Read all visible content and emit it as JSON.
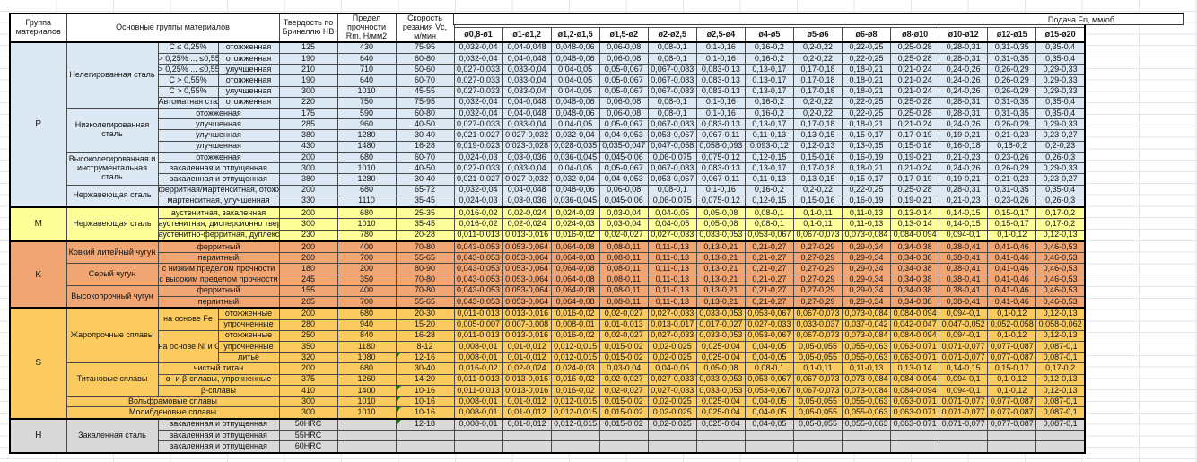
{
  "header": {
    "col_group": "Группа материалов",
    "col_main_groups": "Основные группы материалов",
    "col_hardness": "Твердость по Бринеллю HB",
    "col_strength": "Предел прочности Rm, Н/мм2",
    "col_speed": "Скорость резания Vc, м/мин",
    "feed_title": "Подача Fn, мм/об",
    "feed_columns": [
      "ø0,8-ø1",
      "ø1-ø1,2",
      "ø1,2-ø1,5",
      "ø1,5-ø2",
      "ø2-ø2,5",
      "ø2,5-ø4",
      "ø4-ø5",
      "ø5-ø6",
      "ø6-ø8",
      "ø8-ø10",
      "ø10-ø12",
      "ø12-ø15",
      "ø15-ø20"
    ]
  },
  "comment_flag_color": "#117711",
  "feed_patterns": {
    "A": [
      "0,032-0,04",
      "0,04-0,048",
      "0,048-0,06",
      "0,06-0,08",
      "0,08-0,1",
      "0,1-0,16",
      "0,16-0,2",
      "0,2-0,22",
      "0,22-0,25",
      "0,25-0,28",
      "0,28-0,31",
      "0,31-0,35",
      "0,35-0,4"
    ],
    "B": [
      "0,027-0,033",
      "0,033-0,04",
      "0,04-0,05",
      "0,05-0,067",
      "0,067-0,083",
      "0,083-0,13",
      "0,13-0,17",
      "0,17-0,18",
      "0,18-0,21",
      "0,21-0,24",
      "0,24-0,26",
      "0,26-0,29",
      "0,29-0,33"
    ],
    "C": [
      "0,021-0,027",
      "0,027-0,032",
      "0,032-0,04",
      "0,04-0,053",
      "0,053-0,067",
      "0,067-0,11",
      "0,11-0,13",
      "0,13-0,15",
      "0,15-0,17",
      "0,17-0,19",
      "0,19-0,21",
      "0,21-0,23",
      "0,23-0,27"
    ],
    "D": [
      "0,024-0,03",
      "0,03-0,036",
      "0,036-0,045",
      "0,045-0,06",
      "0,06-0,075",
      "0,075-0,12",
      "0,12-0,15",
      "0,15-0,16",
      "0,16-0,19",
      "0,19-0,21",
      "0,21-0,23",
      "0,23-0,26",
      "0,26-0,3"
    ],
    "E": [
      "0,019-0,023",
      "0,023-0,028",
      "0,028-0,035",
      "0,035-0,047",
      "0,047-0,058",
      "0,058-0,093",
      "0,093-0,12",
      "0,12-0,13",
      "0,13-0,15",
      "0,15-0,16",
      "0,16-0,18",
      "0,18-0,2",
      "0,2-0,23"
    ],
    "F": [
      "0,016-0,02",
      "0,02-0,024",
      "0,024-0,03",
      "0,03-0,04",
      "0,04-0,05",
      "0,05-0,08",
      "0,08-0,1",
      "0,1-0,11",
      "0,11-0,13",
      "0,13-0,14",
      "0,14-0,15",
      "0,15-0,17",
      "0,17-0,2"
    ],
    "G": [
      "0,011-0,013",
      "0,013-0,016",
      "0,016-0,02",
      "0,02-0,027",
      "0,027-0,033",
      "0,033-0,053",
      "0,053-0,067",
      "0,067-0,073",
      "0,073-0,084",
      "0,084-0,094",
      "0,094-0,1",
      "0,1-0,12",
      "0,12-0,13"
    ],
    "H": [
      "0,043-0,053",
      "0,053-0,064",
      "0,064-0,08",
      "0,08-0,11",
      "0,11-0,13",
      "0,13-0,21",
      "0,21-0,27",
      "0,27-0,29",
      "0,29-0,34",
      "0,34-0,38",
      "0,38-0,41",
      "0,41-0,46",
      "0,46-0,53"
    ],
    "I": [
      "0,005-0,007",
      "0,007-0,008",
      "0,008-0,01",
      "0,01-0,013",
      "0,013-0,017",
      "0,017-0,027",
      "0,027-0,033",
      "0,033-0,037",
      "0,037-0,042",
      "0,042-0,047",
      "0,047-0,052",
      "0,052-0,058",
      "0,058-0,062"
    ],
    "J": [
      "0,008-0,01",
      "0,01-0,012",
      "0,012-0,015",
      "0,015-0,02",
      "0,02-0,025",
      "0,025-0,04",
      "0,04-0,05",
      "0,05-0,055",
      "0,055-0,063",
      "0,063-0,071",
      "0,071-0,077",
      "0,077-0,087",
      "0,087-0,1"
    ],
    "EMPTY": [
      "",
      "",
      "",
      "",
      "",
      "",
      "",
      "",
      "",
      "",
      "",
      "",
      ""
    ]
  },
  "groups": [
    {
      "code": "P",
      "color": "#DCE8F4",
      "rows": [
        {
          "c": [
            {
              "t": "P",
              "rs": 15,
              "k": "g"
            },
            {
              "t": "Нелегированная сталь",
              "rs": 6,
              "k": "f"
            },
            {
              "t": "C ≤ 0,25%",
              "k": "v"
            },
            {
              "t": "отожженная",
              "k": "s"
            }
          ],
          "hb": "125",
          "rm": "430",
          "vc": "75-95",
          "f": "A"
        },
        {
          "c": [
            {
              "t": "> 0,25% ... ≤0,55%",
              "k": "v"
            },
            {
              "t": "отожженная",
              "k": "s"
            }
          ],
          "hb": "190",
          "rm": "640",
          "vc": "60-80",
          "f": "A"
        },
        {
          "c": [
            {
              "t": "> 0,25% ... ≤0,55%",
              "k": "v"
            },
            {
              "t": "улучшенная",
              "k": "s"
            }
          ],
          "hb": "210",
          "rm": "710",
          "vc": "50-60",
          "f": "B"
        },
        {
          "c": [
            {
              "t": "C > 0,55%",
              "k": "v"
            },
            {
              "t": "отожженная",
              "k": "s"
            }
          ],
          "hb": "190",
          "rm": "640",
          "vc": "60-70",
          "f": "B"
        },
        {
          "c": [
            {
              "t": "C > 0,55%",
              "k": "v"
            },
            {
              "t": "улучшенная",
              "k": "s"
            }
          ],
          "hb": "300",
          "rm": "1010",
          "vc": "45-55",
          "f": "B"
        },
        {
          "c": [
            {
              "t": "Автоматная сталь",
              "k": "v"
            },
            {
              "t": "отожженная",
              "k": "s"
            }
          ],
          "hb": "220",
          "rm": "750",
          "vc": "75-95",
          "f": "A"
        },
        {
          "c": [
            {
              "t": "Низколегированная сталь",
              "rs": 4,
              "k": "f"
            },
            {
              "t": "отожженная",
              "cs": 2,
              "k": "s"
            }
          ],
          "hb": "175",
          "rm": "590",
          "vc": "60-80",
          "f": "A"
        },
        {
          "c": [
            {
              "t": "улучшенная",
              "cs": 2,
              "k": "s"
            }
          ],
          "hb": "285",
          "rm": "960",
          "vc": "40-50",
          "f": "B"
        },
        {
          "c": [
            {
              "t": "улучшенная",
              "cs": 2,
              "k": "s"
            }
          ],
          "hb": "380",
          "rm": "1280",
          "vc": "30-40",
          "f": "C"
        },
        {
          "c": [
            {
              "t": "улучшенная",
              "cs": 2,
              "k": "s"
            }
          ],
          "hb": "430",
          "rm": "1480",
          "vc": "16-28",
          "f": "E"
        },
        {
          "c": [
            {
              "t": "Высоколегированная и инструментальная сталь",
              "rs": 3,
              "k": "f"
            },
            {
              "t": "отожженная",
              "cs": 2,
              "k": "s"
            }
          ],
          "hb": "200",
          "rm": "680",
          "vc": "60-70",
          "f": "D"
        },
        {
          "c": [
            {
              "t": "закаленная и отпущенная",
              "cs": 2,
              "k": "s"
            }
          ],
          "hb": "300",
          "rm": "1010",
          "vc": "40-50",
          "f": "B"
        },
        {
          "c": [
            {
              "t": "закаленная и отпущенная",
              "cs": 2,
              "k": "s"
            }
          ],
          "hb": "380",
          "rm": "1280",
          "vc": "30-40",
          "f": "C"
        },
        {
          "c": [
            {
              "t": "Нержавеющая сталь",
              "rs": 2,
              "k": "f"
            },
            {
              "t": "ферритная/мартенситная, отожженная",
              "cs": 2,
              "k": "s"
            }
          ],
          "hb": "200",
          "rm": "680",
          "vc": "65-72",
          "f": "A"
        },
        {
          "c": [
            {
              "t": "мартенситная, улучшенная",
              "cs": 2,
              "k": "s"
            }
          ],
          "hb": "330",
          "rm": "1110",
          "vc": "35-45",
          "f": "D"
        }
      ]
    },
    {
      "code": "M",
      "color": "#FFFF99",
      "rows": [
        {
          "c": [
            {
              "t": "M",
              "rs": 3,
              "k": "g"
            },
            {
              "t": "Нержавеющая сталь",
              "rs": 3,
              "k": "f"
            },
            {
              "t": "аустенитная, закаленная",
              "cs": 2,
              "k": "s"
            }
          ],
          "hb": "200",
          "rm": "680",
          "vc": "25-35",
          "f": "F"
        },
        {
          "c": [
            {
              "t": "аустенитная, дисперсионно твердеющая",
              "cs": 2,
              "k": "s"
            }
          ],
          "hb": "300",
          "rm": "1010",
          "vc": "35-45",
          "f": "F"
        },
        {
          "c": [
            {
              "t": "аустенитно-ферритная, дуплексная",
              "cs": 2,
              "k": "s"
            }
          ],
          "hb": "230",
          "rm": "780",
          "vc": "20-28",
          "f": "G"
        }
      ]
    },
    {
      "code": "K",
      "color": "#F0A573",
      "rows": [
        {
          "c": [
            {
              "t": "K",
              "rs": 6,
              "k": "g"
            },
            {
              "t": "Ковкий литейный чугун",
              "rs": 2,
              "k": "f"
            },
            {
              "t": "ферритный",
              "cs": 2,
              "k": "s"
            }
          ],
          "hb": "200",
          "rm": "400",
          "vc": "70-80",
          "f": "H"
        },
        {
          "c": [
            {
              "t": "перлитный",
              "cs": 2,
              "k": "s"
            }
          ],
          "hb": "260",
          "rm": "700",
          "vc": "55-65",
          "f": "H"
        },
        {
          "c": [
            {
              "t": "Серый чугун",
              "rs": 2,
              "k": "f"
            },
            {
              "t": "с низким пределом прочности",
              "cs": 2,
              "k": "s"
            }
          ],
          "hb": "180",
          "rm": "200",
          "vc": "80-90",
          "f": "H"
        },
        {
          "c": [
            {
              "t": "с высоким пределом прочности",
              "cs": 2,
              "k": "s"
            }
          ],
          "hb": "245",
          "rm": "350",
          "vc": "70-80",
          "f": "H"
        },
        {
          "c": [
            {
              "t": "Высокопрочный чугун",
              "rs": 2,
              "k": "f"
            },
            {
              "t": "ферритный",
              "cs": 2,
              "k": "s"
            }
          ],
          "hb": "155",
          "rm": "400",
          "vc": "70-80",
          "f": "H"
        },
        {
          "c": [
            {
              "t": "перлитный",
              "cs": 2,
              "k": "s"
            }
          ],
          "hb": "265",
          "rm": "700",
          "vc": "55-65",
          "f": "H"
        }
      ]
    },
    {
      "code": "S",
      "color": "#FBCB60",
      "rows": [
        {
          "c": [
            {
              "t": "S",
              "rs": 10,
              "k": "g"
            },
            {
              "t": "Жаропрочные сплавы",
              "rs": 5,
              "k": "f"
            },
            {
              "t": "на основе Fe",
              "rs": 2,
              "k": "v"
            },
            {
              "t": "отожженные",
              "k": "s"
            }
          ],
          "hb": "200",
          "rm": "680",
          "vc": "20-30",
          "f": "G"
        },
        {
          "c": [
            {
              "t": "упрочненные",
              "k": "s"
            }
          ],
          "hb": "280",
          "rm": "940",
          "vc": "15-20",
          "f": "I"
        },
        {
          "c": [
            {
              "t": "на основе Ni и Co",
              "rs": 3,
              "k": "v"
            },
            {
              "t": "отожженные",
              "k": "s"
            }
          ],
          "hb": "250",
          "rm": "840",
          "vc": "16-28",
          "f": "G"
        },
        {
          "c": [
            {
              "t": "упрочненные",
              "k": "s"
            }
          ],
          "hb": "350",
          "rm": "1180",
          "vc": "8-12",
          "f": "J"
        },
        {
          "c": [
            {
              "t": "литьё",
              "k": "s"
            }
          ],
          "hb": "320",
          "rm": "1080",
          "vc": "12-16",
          "fl": true,
          "f": "J"
        },
        {
          "c": [
            {
              "t": "Титановые сплавы",
              "rs": 3,
              "k": "f"
            },
            {
              "t": "чистый титан",
              "cs": 2,
              "k": "s"
            }
          ],
          "hb": "200",
          "rm": "680",
          "vc": "30-40",
          "f": "F"
        },
        {
          "c": [
            {
              "t": "α- и β-сплавы, упрочненные",
              "cs": 2,
              "k": "s"
            }
          ],
          "hb": "375",
          "rm": "1260",
          "vc": "14-20",
          "f": "G"
        },
        {
          "c": [
            {
              "t": "β-сплавы",
              "cs": 2,
              "k": "s"
            }
          ],
          "hb": "410",
          "rm": "1400",
          "vc": "10-16",
          "fl": true,
          "f": "G"
        },
        {
          "c": [
            {
              "t": "Вольфрамовые сплавы",
              "cs": 3,
              "k": "f"
            }
          ],
          "hb": "300",
          "rm": "1010",
          "vc": "10-16",
          "fl": true,
          "f": "J"
        },
        {
          "c": [
            {
              "t": "Молибденовые сплавы",
              "cs": 3,
              "k": "f"
            }
          ],
          "hb": "300",
          "rm": "1010",
          "vc": "10-16",
          "fl": true,
          "f": "J"
        }
      ]
    },
    {
      "code": "H",
      "color": "#D9D9D9",
      "rows": [
        {
          "c": [
            {
              "t": "H",
              "rs": 3,
              "k": "g"
            },
            {
              "t": "Закаленная сталь",
              "rs": 3,
              "k": "f"
            },
            {
              "t": "закаленная и отпущенная",
              "cs": 2,
              "k": "s"
            }
          ],
          "hb": "50HRC",
          "rm": "",
          "vc": "12-18",
          "fl": true,
          "f": "J"
        },
        {
          "c": [
            {
              "t": "закаленная и отпущенная",
              "cs": 2,
              "k": "s"
            }
          ],
          "hb": "55HRC",
          "rm": "",
          "vc": "",
          "f": "EMPTY"
        },
        {
          "c": [
            {
              "t": "закаленная и отпущенная",
              "cs": 2,
              "k": "s"
            }
          ],
          "hb": "60HRC",
          "rm": "",
          "vc": "",
          "f": "EMPTY"
        }
      ]
    }
  ]
}
